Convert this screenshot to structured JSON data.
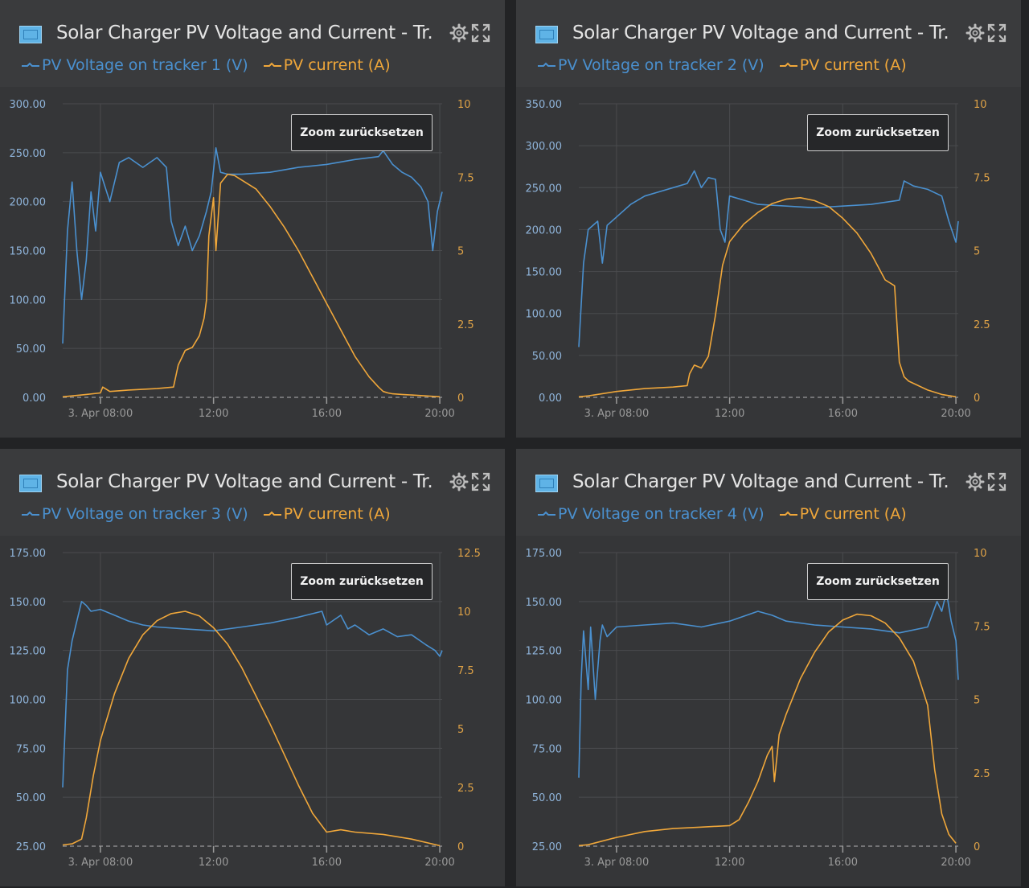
{
  "zoom_label": "Zoom zurücksetzen",
  "colors": {
    "voltage": "#4a90cf",
    "current": "#f0a73a",
    "grid": "#4a4b4e",
    "text": "#9a9a9a"
  },
  "icons": [
    "solar-charger-icon",
    "gear-icon",
    "expand-icon"
  ],
  "chart_data": [
    {
      "type": "line",
      "title": "Solar Charger PV Voltage and Current - Tr...",
      "x_ticks": [
        "3. Apr 08:00",
        "12:00",
        "16:00",
        "20:00"
      ],
      "xlim": [
        "06:40",
        "20:05"
      ],
      "y_left": {
        "ylim": [
          0,
          300
        ],
        "ticks": [
          "0.00",
          "50.00",
          "100.00",
          "150.00",
          "200.00",
          "250.00",
          "300.00"
        ]
      },
      "y_right": {
        "ylim": [
          0,
          10
        ],
        "ticks": [
          "0",
          "2.5",
          "5",
          "7.5",
          "10"
        ]
      },
      "series": [
        {
          "name": "PV Voltage on tracker 1 (V)",
          "axis": "left",
          "x": [
            "06:40",
            "06:50",
            "07:00",
            "07:10",
            "07:20",
            "07:30",
            "07:40",
            "07:50",
            "08:00",
            "08:20",
            "08:40",
            "09:00",
            "09:30",
            "10:00",
            "10:20",
            "10:30",
            "10:45",
            "11:00",
            "11:15",
            "11:30",
            "11:45",
            "11:55",
            "12:05",
            "12:15",
            "12:30",
            "13:00",
            "14:00",
            "15:00",
            "16:00",
            "17:00",
            "17:50",
            "18:00",
            "18:20",
            "18:40",
            "19:00",
            "19:20",
            "19:35",
            "19:45",
            "19:55",
            "20:05"
          ],
          "y": [
            55,
            170,
            220,
            150,
            100,
            140,
            210,
            170,
            230,
            200,
            240,
            245,
            235,
            245,
            235,
            180,
            155,
            175,
            150,
            165,
            190,
            210,
            255,
            230,
            228,
            228,
            230,
            235,
            238,
            243,
            246,
            252,
            238,
            230,
            225,
            215,
            200,
            150,
            190,
            210
          ]
        },
        {
          "name": "PV current (A)",
          "axis": "right",
          "x": [
            "06:40",
            "07:00",
            "07:30",
            "08:00",
            "08:05",
            "08:20",
            "09:00",
            "10:00",
            "10:35",
            "10:45",
            "11:00",
            "11:15",
            "11:30",
            "11:40",
            "11:45",
            "11:50",
            "12:00",
            "12:05",
            "12:15",
            "12:30",
            "12:45",
            "13:00",
            "13:30",
            "14:00",
            "14:30",
            "15:00",
            "15:30",
            "16:00",
            "16:30",
            "17:00",
            "17:30",
            "17:50",
            "18:00",
            "18:10",
            "18:20",
            "18:40",
            "19:00",
            "19:30",
            "20:00"
          ],
          "y": [
            0.02,
            0.05,
            0.1,
            0.15,
            0.35,
            0.2,
            0.25,
            0.3,
            0.35,
            1.1,
            1.6,
            1.7,
            2.1,
            2.7,
            3.3,
            5.5,
            6.8,
            5.0,
            7.3,
            7.6,
            7.55,
            7.4,
            7.1,
            6.5,
            5.8,
            5.0,
            4.1,
            3.2,
            2.3,
            1.4,
            0.7,
            0.35,
            0.2,
            0.15,
            0.12,
            0.1,
            0.08,
            0.05,
            0.02
          ]
        }
      ]
    },
    {
      "type": "line",
      "title": "Solar Charger PV Voltage and Current - Tr...",
      "x_ticks": [
        "3. Apr 08:00",
        "12:00",
        "16:00",
        "20:00"
      ],
      "xlim": [
        "06:40",
        "20:05"
      ],
      "y_left": {
        "ylim": [
          0,
          350
        ],
        "ticks": [
          "0.00",
          "50.00",
          "100.00",
          "150.00",
          "200.00",
          "250.00",
          "300.00",
          "350.00"
        ]
      },
      "y_right": {
        "ylim": [
          0,
          10
        ],
        "ticks": [
          "0",
          "2.5",
          "5",
          "7.5",
          "10"
        ]
      },
      "series": [
        {
          "name": "PV Voltage on tracker 2 (V)",
          "axis": "left",
          "x": [
            "06:40",
            "06:50",
            "07:00",
            "07:20",
            "07:30",
            "07:40",
            "08:00",
            "08:30",
            "09:00",
            "09:30",
            "10:00",
            "10:30",
            "10:45",
            "11:00",
            "11:15",
            "11:30",
            "11:40",
            "11:50",
            "12:00",
            "12:30",
            "13:00",
            "14:00",
            "15:00",
            "16:00",
            "17:00",
            "18:00",
            "18:10",
            "18:30",
            "19:00",
            "19:30",
            "19:45",
            "20:00",
            "20:05"
          ],
          "y": [
            60,
            160,
            200,
            210,
            160,
            205,
            215,
            230,
            240,
            245,
            250,
            255,
            270,
            250,
            262,
            260,
            200,
            185,
            240,
            235,
            230,
            228,
            226,
            228,
            230,
            235,
            258,
            252,
            248,
            240,
            210,
            185,
            210
          ]
        },
        {
          "name": "PV current (A)",
          "axis": "right",
          "x": [
            "06:40",
            "07:00",
            "08:00",
            "09:00",
            "10:00",
            "10:30",
            "10:35",
            "10:45",
            "11:00",
            "11:15",
            "11:30",
            "11:45",
            "12:00",
            "12:30",
            "13:00",
            "13:30",
            "14:00",
            "14:30",
            "15:00",
            "15:30",
            "16:00",
            "16:30",
            "17:00",
            "17:30",
            "17:50",
            "18:00",
            "18:10",
            "18:20",
            "18:40",
            "19:00",
            "19:30",
            "20:00"
          ],
          "y": [
            0.02,
            0.05,
            0.2,
            0.3,
            0.35,
            0.4,
            0.8,
            1.1,
            1.0,
            1.4,
            2.8,
            4.5,
            5.3,
            5.9,
            6.3,
            6.6,
            6.75,
            6.8,
            6.7,
            6.5,
            6.1,
            5.6,
            4.9,
            4.0,
            3.8,
            1.2,
            0.7,
            0.55,
            0.4,
            0.25,
            0.1,
            0.02
          ]
        }
      ]
    },
    {
      "type": "line",
      "title": "Solar Charger PV Voltage and Current - Tr...",
      "x_ticks": [
        "3. Apr 08:00",
        "12:00",
        "16:00",
        "20:00"
      ],
      "xlim": [
        "06:40",
        "20:05"
      ],
      "y_left": {
        "ylim": [
          25,
          175
        ],
        "ticks": [
          "25.00",
          "50.00",
          "75.00",
          "100.00",
          "125.00",
          "150.00",
          "175.00"
        ]
      },
      "y_right": {
        "ylim": [
          0,
          12.5
        ],
        "ticks": [
          "0",
          "2.5",
          "5",
          "7.5",
          "10",
          "12.5"
        ]
      },
      "series": [
        {
          "name": "PV Voltage on tracker 3 (V)",
          "axis": "left",
          "x": [
            "06:40",
            "06:50",
            "07:00",
            "07:20",
            "07:30",
            "07:40",
            "08:00",
            "08:30",
            "09:00",
            "09:30",
            "10:00",
            "11:00",
            "12:00",
            "13:00",
            "14:00",
            "15:00",
            "15:50",
            "16:00",
            "16:30",
            "16:45",
            "17:00",
            "17:30",
            "18:00",
            "18:30",
            "19:00",
            "19:30",
            "19:50",
            "20:00",
            "20:05"
          ],
          "y": [
            55,
            115,
            130,
            150,
            148,
            145,
            146,
            143,
            140,
            138,
            137,
            136,
            135,
            137,
            139,
            142,
            145,
            138,
            143,
            136,
            138,
            133,
            136,
            132,
            133,
            128,
            125,
            122,
            125
          ]
        },
        {
          "name": "PV current (A)",
          "axis": "right",
          "x": [
            "06:40",
            "07:00",
            "07:20",
            "07:30",
            "07:45",
            "08:00",
            "08:30",
            "09:00",
            "09:30",
            "10:00",
            "10:30",
            "11:00",
            "11:30",
            "12:00",
            "12:30",
            "13:00",
            "13:30",
            "14:00",
            "14:30",
            "15:00",
            "15:30",
            "16:00",
            "16:30",
            "17:00",
            "18:00",
            "19:00",
            "20:00"
          ],
          "y": [
            0.05,
            0.1,
            0.3,
            1.2,
            3.0,
            4.5,
            6.5,
            8.0,
            9.0,
            9.6,
            9.9,
            10.0,
            9.8,
            9.3,
            8.6,
            7.6,
            6.4,
            5.2,
            3.9,
            2.6,
            1.4,
            0.6,
            0.7,
            0.6,
            0.5,
            0.3,
            0.02
          ]
        }
      ]
    },
    {
      "type": "line",
      "title": "Solar Charger PV Voltage and Current - Tr...",
      "x_ticks": [
        "3. Apr 08:00",
        "12:00",
        "16:00",
        "20:00"
      ],
      "xlim": [
        "06:40",
        "20:05"
      ],
      "y_left": {
        "ylim": [
          25,
          175
        ],
        "ticks": [
          "25.00",
          "50.00",
          "75.00",
          "100.00",
          "125.00",
          "150.00",
          "175.00"
        ]
      },
      "y_right": {
        "ylim": [
          0,
          10
        ],
        "ticks": [
          "0",
          "2.5",
          "5",
          "7.5",
          "10"
        ]
      },
      "series": [
        {
          "name": "PV Voltage on tracker 4 (V)",
          "axis": "left",
          "x": [
            "06:40",
            "06:45",
            "06:50",
            "07:00",
            "07:05",
            "07:15",
            "07:25",
            "07:30",
            "07:40",
            "08:00",
            "09:00",
            "10:00",
            "11:00",
            "12:00",
            "13:00",
            "13:30",
            "14:00",
            "15:00",
            "16:00",
            "17:00",
            "18:00",
            "19:00",
            "19:20",
            "19:30",
            "19:40",
            "19:50",
            "20:00",
            "20:05"
          ],
          "y": [
            60,
            110,
            135,
            105,
            137,
            100,
            130,
            138,
            132,
            137,
            138,
            139,
            137,
            140,
            145,
            143,
            140,
            138,
            137,
            136,
            134,
            137,
            150,
            145,
            155,
            140,
            130,
            110
          ]
        },
        {
          "name": "PV current (A)",
          "axis": "right",
          "x": [
            "06:40",
            "07:00",
            "08:00",
            "09:00",
            "10:00",
            "11:00",
            "12:00",
            "12:20",
            "12:40",
            "13:00",
            "13:20",
            "13:30",
            "13:35",
            "13:45",
            "14:00",
            "14:30",
            "15:00",
            "15:30",
            "16:00",
            "16:30",
            "17:00",
            "17:30",
            "18:00",
            "18:30",
            "19:00",
            "19:15",
            "19:30",
            "19:45",
            "20:00"
          ],
          "y": [
            0.02,
            0.05,
            0.3,
            0.5,
            0.6,
            0.65,
            0.7,
            0.9,
            1.5,
            2.2,
            3.1,
            3.4,
            2.2,
            3.8,
            4.5,
            5.7,
            6.6,
            7.3,
            7.7,
            7.9,
            7.85,
            7.6,
            7.1,
            6.3,
            4.8,
            2.6,
            1.1,
            0.4,
            0.1
          ]
        }
      ]
    }
  ]
}
